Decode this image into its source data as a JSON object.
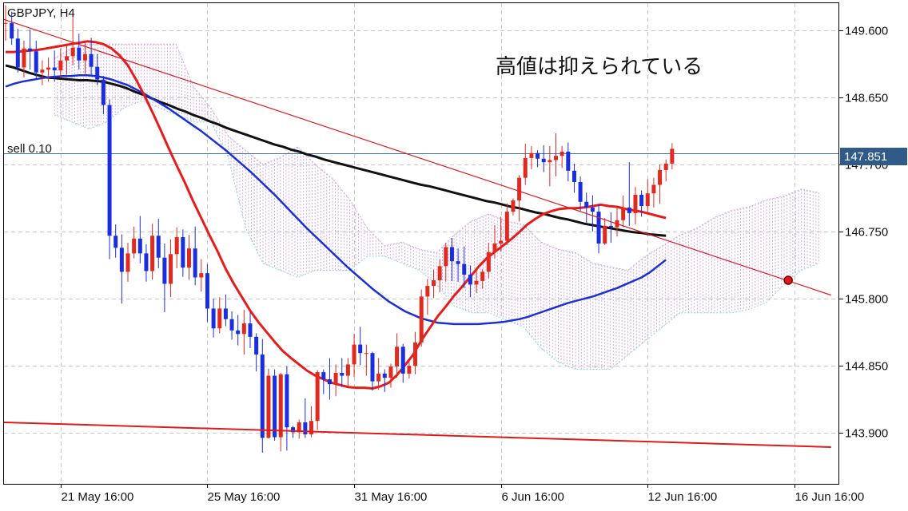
{
  "title": "GBPJPY, H4",
  "order_label": "sell 0.10",
  "annotation": "高値は抑えられている",
  "colors": {
    "bull": "#e0291f",
    "bear": "#1a2ee0",
    "ma_fast": "#e81b1b",
    "ma_mid": "#1a2fd6",
    "ma_slow": "#111111",
    "trendline": "#e01a1a",
    "cloud_bull": "#cfa8e8",
    "cloud_bear": "#7fd8e8",
    "order_line": "#3d6f9e",
    "price_tag_bg": "#2f5a8a",
    "grid": "#c8c8c8"
  },
  "chart_data": {
    "type": "candlestick",
    "symbol": "GBPJPY",
    "timeframe": "H4",
    "ylim": [
      143.18,
      149.98
    ],
    "y_ticks": [
      "149.600",
      "148.650",
      "147.700",
      "146.750",
      "145.800",
      "144.850",
      "143.900"
    ],
    "x_ticks": [
      "21 May 16:00",
      "25 May 16:00",
      "31 May 16:00",
      "6 Jun 16:00",
      "12 Jun 16:00",
      "16 Jun 16:00"
    ],
    "x_tick_index": [
      9,
      33,
      57,
      81,
      105,
      129
    ],
    "current_price": "147.851",
    "order_price": 147.851,
    "candles": [
      [
        149.69,
        149.95,
        149.45,
        149.7
      ],
      [
        149.7,
        149.86,
        149.39,
        149.48
      ],
      [
        149.48,
        149.62,
        149.0,
        149.07
      ],
      [
        149.07,
        149.45,
        148.93,
        149.34
      ],
      [
        149.34,
        149.61,
        149.04,
        149.3
      ],
      [
        149.3,
        149.45,
        148.92,
        149.0
      ],
      [
        149.0,
        149.17,
        148.82,
        149.04
      ],
      [
        149.04,
        149.21,
        148.87,
        149.07
      ],
      [
        149.07,
        149.31,
        148.87,
        149.03
      ],
      [
        149.03,
        149.34,
        148.92,
        149.17
      ],
      [
        149.17,
        149.38,
        148.97,
        149.23
      ],
      [
        149.23,
        149.8,
        149.1,
        149.35
      ],
      [
        149.35,
        149.55,
        149.04,
        149.17
      ],
      [
        149.17,
        149.43,
        148.98,
        149.26
      ],
      [
        149.26,
        149.49,
        148.96,
        149.08
      ],
      [
        149.08,
        149.26,
        148.82,
        148.9
      ],
      [
        148.9,
        148.95,
        148.41,
        148.54
      ],
      [
        148.54,
        148.62,
        146.36,
        146.69
      ],
      [
        146.69,
        146.85,
        146.38,
        146.52
      ],
      [
        146.52,
        146.71,
        145.73,
        146.18
      ],
      [
        146.18,
        146.59,
        146.04,
        146.44
      ],
      [
        146.44,
        146.82,
        146.37,
        146.65
      ],
      [
        146.65,
        146.97,
        146.3,
        146.44
      ],
      [
        146.44,
        146.57,
        146.04,
        146.19
      ],
      [
        146.19,
        146.86,
        146.07,
        146.69
      ],
      [
        146.69,
        146.93,
        146.23,
        146.38
      ],
      [
        146.38,
        146.58,
        145.61,
        146.01
      ],
      [
        146.01,
        146.64,
        145.82,
        146.43
      ],
      [
        146.43,
        146.81,
        146.23,
        146.67
      ],
      [
        146.67,
        146.78,
        146.11,
        146.24
      ],
      [
        146.24,
        146.7,
        146.07,
        146.51
      ],
      [
        146.51,
        146.82,
        145.99,
        146.1
      ],
      [
        146.1,
        146.36,
        145.9,
        146.16
      ],
      [
        146.16,
        146.29,
        145.47,
        145.66
      ],
      [
        145.66,
        145.8,
        145.25,
        145.38
      ],
      [
        145.38,
        145.82,
        145.31,
        145.66
      ],
      [
        145.66,
        145.86,
        145.41,
        145.51
      ],
      [
        145.51,
        145.62,
        145.22,
        145.35
      ],
      [
        145.35,
        145.57,
        145.14,
        145.3
      ],
      [
        145.3,
        145.64,
        145.01,
        145.45
      ],
      [
        145.45,
        145.61,
        145.1,
        145.26
      ],
      [
        145.26,
        145.31,
        144.77,
        145.01
      ],
      [
        145.01,
        145.23,
        143.62,
        143.83
      ],
      [
        143.83,
        144.81,
        143.82,
        144.71
      ],
      [
        144.71,
        144.8,
        143.79,
        143.84
      ],
      [
        143.84,
        144.75,
        143.64,
        144.73
      ],
      [
        144.73,
        144.84,
        143.65,
        143.98
      ],
      [
        143.98,
        144.0,
        143.83,
        143.91
      ],
      [
        143.91,
        144.09,
        143.82,
        144.05
      ],
      [
        144.05,
        144.39,
        143.83,
        143.88
      ],
      [
        143.88,
        144.28,
        143.84,
        144.07
      ],
      [
        144.07,
        144.79,
        143.94,
        144.76
      ],
      [
        144.76,
        144.8,
        144.45,
        144.66
      ],
      [
        144.66,
        144.96,
        144.37,
        144.59
      ],
      [
        144.59,
        144.87,
        144.42,
        144.75
      ],
      [
        144.75,
        144.96,
        144.55,
        144.71
      ],
      [
        144.71,
        144.96,
        144.56,
        144.87
      ],
      [
        144.87,
        145.3,
        144.69,
        145.15
      ],
      [
        145.15,
        145.4,
        144.86,
        145.03
      ],
      [
        145.03,
        145.15,
        144.71,
        145.03
      ],
      [
        145.03,
        145.05,
        144.5,
        144.63
      ],
      [
        144.63,
        144.96,
        144.51,
        144.74
      ],
      [
        144.74,
        144.8,
        144.48,
        144.68
      ],
      [
        144.68,
        144.88,
        144.54,
        144.84
      ],
      [
        144.84,
        145.31,
        144.68,
        145.12
      ],
      [
        145.12,
        145.16,
        144.61,
        144.74
      ],
      [
        144.74,
        144.94,
        144.67,
        144.85
      ],
      [
        144.85,
        145.33,
        144.73,
        145.18
      ],
      [
        145.18,
        145.93,
        145.12,
        145.83
      ],
      [
        145.83,
        146.08,
        145.57,
        145.98
      ],
      [
        145.98,
        146.21,
        145.81,
        146.06
      ],
      [
        146.06,
        146.36,
        145.89,
        146.26
      ],
      [
        146.26,
        146.59,
        146.04,
        146.53
      ],
      [
        146.53,
        146.66,
        146.05,
        146.33
      ],
      [
        146.33,
        146.51,
        146.04,
        146.29
      ],
      [
        146.29,
        146.54,
        145.95,
        146.14
      ],
      [
        146.14,
        146.27,
        145.82,
        146.0
      ],
      [
        146.0,
        146.24,
        145.88,
        146.05
      ],
      [
        146.05,
        146.22,
        145.94,
        146.18
      ],
      [
        146.18,
        146.59,
        146.09,
        146.46
      ],
      [
        146.46,
        146.84,
        146.37,
        146.58
      ],
      [
        146.58,
        146.96,
        146.47,
        146.62
      ],
      [
        146.62,
        147.15,
        146.56,
        147.03
      ],
      [
        147.03,
        147.22,
        146.98,
        147.19
      ],
      [
        147.19,
        147.55,
        146.89,
        147.51
      ],
      [
        147.51,
        147.99,
        147.41,
        147.79
      ],
      [
        147.79,
        147.96,
        147.63,
        147.86
      ],
      [
        147.86,
        147.9,
        147.66,
        147.78
      ],
      [
        147.78,
        147.97,
        147.59,
        147.73
      ],
      [
        147.73,
        147.96,
        147.39,
        147.76
      ],
      [
        147.76,
        148.14,
        147.53,
        147.82
      ],
      [
        147.82,
        147.96,
        147.65,
        147.88
      ],
      [
        147.88,
        148.01,
        147.46,
        147.61
      ],
      [
        147.61,
        147.71,
        147.3,
        147.45
      ],
      [
        147.45,
        147.53,
        147.04,
        147.17
      ],
      [
        147.17,
        147.3,
        146.87,
        147.09
      ],
      [
        147.09,
        147.26,
        146.75,
        147.03
      ],
      [
        147.03,
        147.14,
        146.44,
        146.58
      ],
      [
        146.58,
        146.94,
        146.56,
        146.83
      ],
      [
        146.83,
        147.02,
        146.59,
        146.81
      ],
      [
        146.81,
        147.1,
        146.68,
        146.91
      ],
      [
        146.91,
        147.26,
        146.81,
        147.09
      ],
      [
        147.09,
        147.73,
        146.83,
        147.01
      ],
      [
        147.01,
        147.38,
        146.85,
        147.27
      ],
      [
        147.27,
        147.33,
        146.96,
        147.11
      ],
      [
        147.11,
        147.49,
        147.03,
        147.29
      ],
      [
        147.29,
        147.51,
        147.09,
        147.41
      ],
      [
        147.41,
        147.7,
        147.14,
        147.62
      ],
      [
        147.62,
        147.77,
        147.46,
        147.71
      ],
      [
        147.71,
        148.0,
        147.63,
        147.92
      ]
    ],
    "ma_fast": [
      149.29,
      149.29,
      149.3,
      149.31,
      149.32,
      149.34,
      149.36,
      149.38,
      149.4,
      149.42,
      149.44,
      149.43,
      149.4,
      149.34,
      149.24,
      149.1,
      148.9,
      148.68,
      148.44,
      148.19,
      147.93,
      147.68,
      147.44,
      147.18,
      146.94,
      146.7,
      146.47,
      146.22,
      146.01,
      145.82,
      145.63,
      145.47,
      145.33,
      145.19,
      145.06,
      144.96,
      144.87,
      144.78,
      144.71,
      144.66,
      144.61,
      144.58,
      144.55,
      144.54,
      144.54,
      144.53,
      144.56,
      144.61,
      144.72,
      144.86,
      145.01,
      145.21,
      145.38,
      145.55,
      145.69,
      145.84,
      145.97,
      146.11,
      146.25,
      146.37,
      146.46,
      146.55,
      146.64,
      146.74,
      146.85,
      146.93,
      147.0,
      147.04,
      147.07,
      147.08,
      147.08,
      147.09,
      147.11,
      147.13,
      147.11,
      147.1,
      147.07,
      147.05,
      147.03,
      147.0,
      146.97,
      146.94
    ],
    "ma_mid": [
      148.8,
      148.84,
      148.87,
      148.89,
      148.91,
      148.93,
      148.94,
      148.95,
      148.95,
      148.96,
      148.96,
      148.95,
      148.93,
      148.9,
      148.86,
      148.82,
      148.76,
      148.7,
      148.63,
      148.56,
      148.49,
      148.41,
      148.33,
      148.25,
      148.17,
      148.08,
      147.99,
      147.9,
      147.8,
      147.7,
      147.6,
      147.49,
      147.38,
      147.27,
      147.15,
      147.03,
      146.91,
      146.79,
      146.68,
      146.57,
      146.46,
      146.35,
      146.24,
      146.14,
      146.04,
      145.94,
      145.85,
      145.76,
      145.69,
      145.62,
      145.57,
      145.52,
      145.49,
      145.46,
      145.45,
      145.44,
      145.44,
      145.44,
      145.44,
      145.45,
      145.46,
      145.47,
      145.49,
      145.51,
      145.54,
      145.58,
      145.62,
      145.66,
      145.7,
      145.74,
      145.77,
      145.8,
      145.83,
      145.87,
      145.91,
      145.95,
      146.0,
      146.05,
      146.1,
      146.17,
      146.26,
      146.35
    ],
    "ma_slow": [
      149.1,
      149.07,
      149.03,
      148.99,
      148.96,
      148.93,
      148.92,
      148.91,
      148.9,
      148.89,
      148.89,
      148.88,
      148.87,
      148.84,
      148.81,
      148.77,
      148.72,
      148.68,
      148.63,
      148.58,
      148.54,
      148.49,
      148.45,
      148.4,
      148.36,
      148.31,
      148.27,
      148.22,
      148.18,
      148.14,
      148.1,
      148.06,
      148.02,
      147.98,
      147.95,
      147.91,
      147.88,
      147.84,
      147.81,
      147.77,
      147.74,
      147.71,
      147.68,
      147.65,
      147.62,
      147.59,
      147.56,
      147.53,
      147.5,
      147.47,
      147.44,
      147.41,
      147.39,
      147.36,
      147.33,
      147.3,
      147.27,
      147.24,
      147.21,
      147.18,
      147.16,
      147.13,
      147.1,
      147.08,
      147.05,
      147.02,
      147.0,
      146.97,
      146.94,
      146.92,
      146.89,
      146.86,
      146.84,
      146.82,
      146.8,
      146.78,
      146.76,
      146.74,
      146.73,
      146.71,
      146.7,
      146.69
    ],
    "cloud_a": [
      149.2,
      149.35,
      149.4,
      149.4,
      149.4,
      149.4,
      149.4,
      149.4,
      148.8,
      148.5,
      148.1,
      147.9,
      147.7,
      147.8,
      147.95,
      147.7,
      147.5,
      147.2,
      146.8,
      146.55,
      146.6,
      146.5,
      146.45,
      146.7,
      146.9,
      147.0,
      146.9,
      146.85,
      146.6,
      146.5,
      146.45,
      146.3,
      146.25,
      146.2,
      146.4,
      146.55,
      146.7,
      146.8,
      146.95,
      147.05,
      147.1,
      147.2,
      147.25,
      147.35,
      147.3
    ],
    "cloud_b": [
      148.4,
      148.3,
      148.2,
      148.3,
      148.5,
      148.6,
      148.5,
      148.4,
      148.3,
      148.3,
      147.8,
      146.8,
      146.3,
      146.2,
      146.1,
      146.2,
      146.2,
      146.2,
      146.4,
      146.4,
      146.3,
      146.2,
      146.0,
      145.7,
      145.6,
      145.6,
      145.5,
      145.4,
      145.1,
      144.9,
      144.8,
      144.8,
      144.8,
      145.0,
      145.2,
      145.4,
      145.6,
      145.6,
      145.6,
      145.6,
      145.65,
      145.75,
      146.0,
      146.2,
      146.3
    ],
    "trendline_upper": {
      "start": [
        0,
        149.75
      ],
      "end": [
        135,
        145.85
      ]
    },
    "trendline_lower": {
      "start": [
        0,
        144.05
      ],
      "end": [
        135,
        143.7
      ]
    },
    "marker": [
      128,
      146.06
    ]
  }
}
